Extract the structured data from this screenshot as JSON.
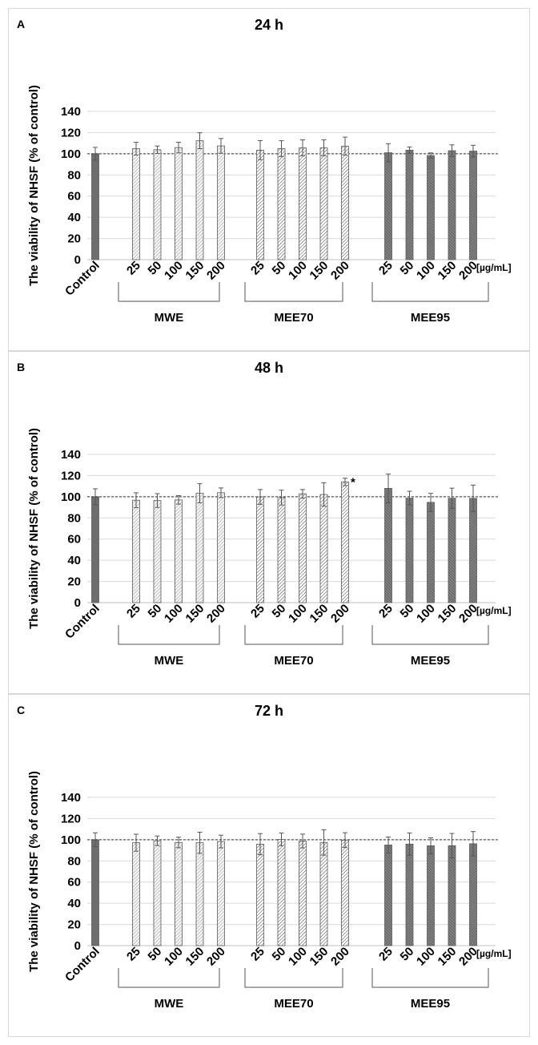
{
  "chart_data": [
    {
      "panel_label": "A",
      "title": "24 h",
      "type": "bar",
      "ylabel": "The viability of NHSF (% of control)",
      "ylim": [
        0,
        140
      ],
      "yticks": [
        0,
        20,
        40,
        60,
        80,
        100,
        120,
        140
      ],
      "unit_label": "[µg/mL]",
      "reference_line": 100,
      "control": {
        "label": "Control",
        "value": 100,
        "error": 6
      },
      "groups": [
        {
          "name": "MWE",
          "pattern": "light",
          "categories": [
            "25",
            "50",
            "100",
            "150",
            "200"
          ],
          "values": [
            104.8,
            103.8,
            105.8,
            112.3,
            107.4
          ],
          "errors": [
            6,
            3.5,
            5,
            7.5,
            7
          ],
          "stars": [
            "",
            "",
            "",
            "",
            ""
          ]
        },
        {
          "name": "MEE70",
          "pattern": "medium",
          "categories": [
            "25",
            "50",
            "100",
            "150",
            "200"
          ],
          "values": [
            103.4,
            104.8,
            105.6,
            105.6,
            107.2
          ],
          "errors": [
            9,
            7.5,
            7.5,
            7.5,
            8.5
          ],
          "stars": [
            "",
            "",
            "",
            "",
            ""
          ]
        },
        {
          "name": "MEE95",
          "pattern": "dark",
          "categories": [
            "25",
            "50",
            "100",
            "150",
            "200"
          ],
          "values": [
            101.0,
            103.4,
            98.3,
            102.9,
            102.5
          ],
          "errors": [
            8.5,
            3,
            2.5,
            5.5,
            5.5
          ],
          "stars": [
            "",
            "",
            "",
            "",
            ""
          ]
        }
      ]
    },
    {
      "panel_label": "B",
      "title": "48 h",
      "type": "bar",
      "ylabel": "The viability of NHSF (% of control)",
      "ylim": [
        0,
        140
      ],
      "yticks": [
        0,
        20,
        40,
        60,
        80,
        100,
        120,
        140
      ],
      "unit_label": "[µg/mL]",
      "reference_line": 100,
      "control": {
        "label": "Control",
        "value": 100,
        "error": 7.5
      },
      "groups": [
        {
          "name": "MWE",
          "pattern": "light",
          "categories": [
            "25",
            "50",
            "100",
            "150",
            "200"
          ],
          "values": [
            96.7,
            96.4,
            97.0,
            103.3,
            103.8
          ],
          "errors": [
            7,
            6.5,
            4,
            9,
            4.5
          ],
          "stars": [
            "",
            "",
            "",
            "",
            ""
          ]
        },
        {
          "name": "MEE70",
          "pattern": "medium",
          "categories": [
            "25",
            "50",
            "100",
            "150",
            "200"
          ],
          "values": [
            99.8,
            99.2,
            102.8,
            102.1,
            114.0
          ],
          "errors": [
            7,
            7,
            4,
            11,
            3.5
          ],
          "stars": [
            "",
            "",
            "",
            "",
            "*"
          ]
        },
        {
          "name": "MEE95",
          "pattern": "dark",
          "categories": [
            "25",
            "50",
            "100",
            "150",
            "200"
          ],
          "values": [
            107.9,
            98.7,
            94.7,
            98.6,
            98.5
          ],
          "errors": [
            13.5,
            6.5,
            8.5,
            9.5,
            12.5
          ],
          "stars": [
            "",
            "",
            "",
            "",
            ""
          ]
        }
      ]
    },
    {
      "panel_label": "C",
      "title": "72 h",
      "type": "bar",
      "ylabel": "The viability of NHSF (% of control)",
      "ylim": [
        0,
        140
      ],
      "yticks": [
        0,
        20,
        40,
        60,
        80,
        100,
        120,
        140
      ],
      "unit_label": "[µg/mL]",
      "reference_line": 100,
      "control": {
        "label": "Control",
        "value": 100,
        "error": 6.5
      },
      "groups": [
        {
          "name": "MWE",
          "pattern": "light",
          "categories": [
            "25",
            "50",
            "100",
            "150",
            "200"
          ],
          "values": [
            97.2,
            99.0,
            97.4,
            97.1,
            98.3
          ],
          "errors": [
            8,
            4.5,
            5,
            10,
            6
          ],
          "stars": [
            "",
            "",
            "",
            "",
            ""
          ]
        },
        {
          "name": "MEE70",
          "pattern": "medium",
          "categories": [
            "25",
            "50",
            "100",
            "150",
            "200"
          ],
          "values": [
            95.8,
            100.3,
            98.8,
            97.4,
            99.6
          ],
          "errors": [
            10,
            6,
            6.5,
            12,
            7
          ],
          "stars": [
            "",
            "",
            "",
            "",
            ""
          ]
        },
        {
          "name": "MEE95",
          "pattern": "dark",
          "categories": [
            "25",
            "50",
            "100",
            "150",
            "200"
          ],
          "values": [
            95.0,
            95.9,
            94.3,
            94.4,
            96.2
          ],
          "errors": [
            7.5,
            10.5,
            7.5,
            11.5,
            11.5
          ],
          "stars": [
            "",
            "",
            "",
            "",
            ""
          ]
        }
      ]
    }
  ]
}
